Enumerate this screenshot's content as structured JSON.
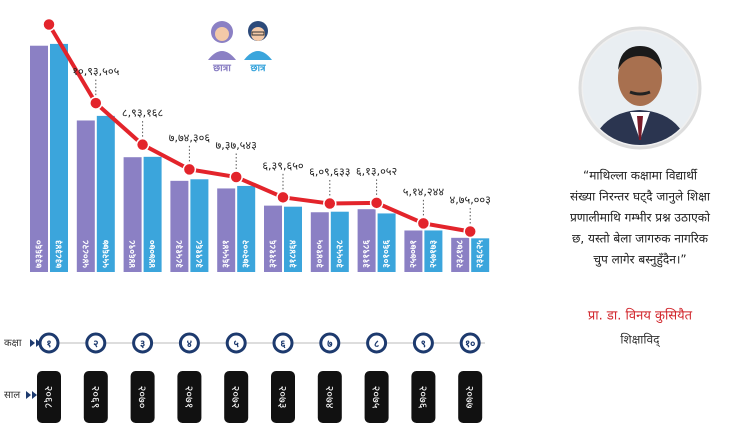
{
  "chart_data": {
    "type": "bar",
    "categories": [
      "१",
      "२",
      "३",
      "४",
      "५",
      "६",
      "७",
      "८",
      "९",
      "१०"
    ],
    "years": [
      "२०६८",
      "२०६९",
      "२०७०",
      "२०७१",
      "२०७२",
      "२०७३",
      "२०७४",
      "२०७५",
      "२०७६",
      "२०७७"
    ],
    "x_label": "कक्षा",
    "year_label": "साल",
    "ylim": [
      150000,
      800000
    ],
    "y2lim": [
      280000,
      1590000
    ],
    "series": [
      {
        "name": "छात्रा",
        "color": "#8b80c4",
        "values": [
          733660,
          540828,
          446098,
          385138,
          365541,
          321186,
          304105,
          311986,
          257071,
          238178
        ],
        "value_labels": [
          "७३३६६०",
          "५४०८२८",
          "४४६०९८",
          "३८५१३८",
          "३६५५४१",
          "३२११८६",
          "३०४१०५",
          "३११९८६",
          "२५७०७१",
          "२३८१७८"
        ]
      },
      {
        "name": "छात्र",
        "color": "#3ba5dc",
        "values": [
          738343,
          552677,
          447070,
          389168,
          372002,
          318464,
          305528,
          301066,
          257173,
          236825
        ],
        "value_labels": [
          "७३८३४३",
          "५५२६७७",
          "४४७०७०",
          "३८९१६८",
          "३७२००२",
          "३१८४६४",
          "३०५५२८",
          "३०१०६६",
          "२५७१७३",
          "२३६८२५"
        ]
      },
      {
        "type": "line",
        "axis": "y2",
        "color": "#e3242b",
        "values": [
          1472003,
          1093505,
          893168,
          774306,
          737543,
          639650,
          609633,
          613052,
          514244,
          475003
        ],
        "value_labels": [
          null,
          "१०,९३,५०५",
          "८,९३,१६८",
          "७,७४,३०६",
          "७,३७,५४३",
          "६,३९,६५०",
          "६,०९,६३३",
          "६,१३,०५२",
          "५,१४,२४४",
          "४,७५,००३"
        ]
      }
    ]
  },
  "quote": {
    "lines": [
      "“माथिल्ला कक्षामा विद्यार्थी",
      "संख्या निरन्तर घट्दै जानुले शिक्षा",
      "प्रणालीमाथि गम्भीर प्रश्न उठाएको",
      "छ, यस्तो बेला जागरुक नागरिक",
      "चुप लागेर बस्नुहुँदैन।”"
    ],
    "author": "प्रा. डा. विनय कुसियैत",
    "role": "शिक्षाविद्"
  }
}
